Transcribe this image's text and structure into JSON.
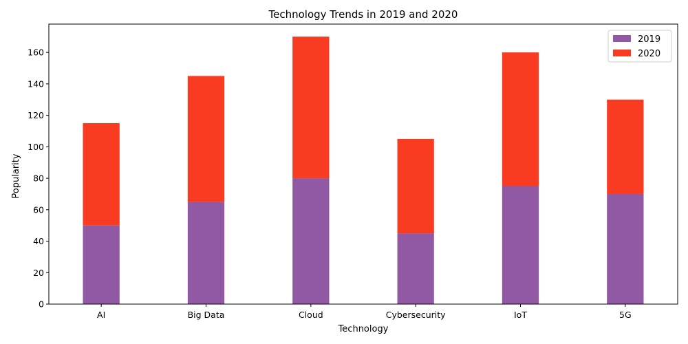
{
  "chart_data": {
    "type": "bar",
    "stacked": true,
    "title": "Technology Trends in 2019 and 2020",
    "xlabel": "Technology",
    "ylabel": "Popularity",
    "categories": [
      "AI",
      "Big Data",
      "Cloud",
      "Cybersecurity",
      "IoT",
      "5G"
    ],
    "series": [
      {
        "name": "2019",
        "values": [
          50,
          65,
          80,
          45,
          75,
          70
        ],
        "color": "#9159a3"
      },
      {
        "name": "2020",
        "values": [
          65,
          80,
          90,
          60,
          85,
          60
        ],
        "color": "#f93b22"
      }
    ],
    "ylim": [
      0,
      178
    ],
    "yticks": [
      0,
      20,
      40,
      60,
      80,
      100,
      120,
      140,
      160
    ],
    "grid": false,
    "legend": "top-right"
  }
}
